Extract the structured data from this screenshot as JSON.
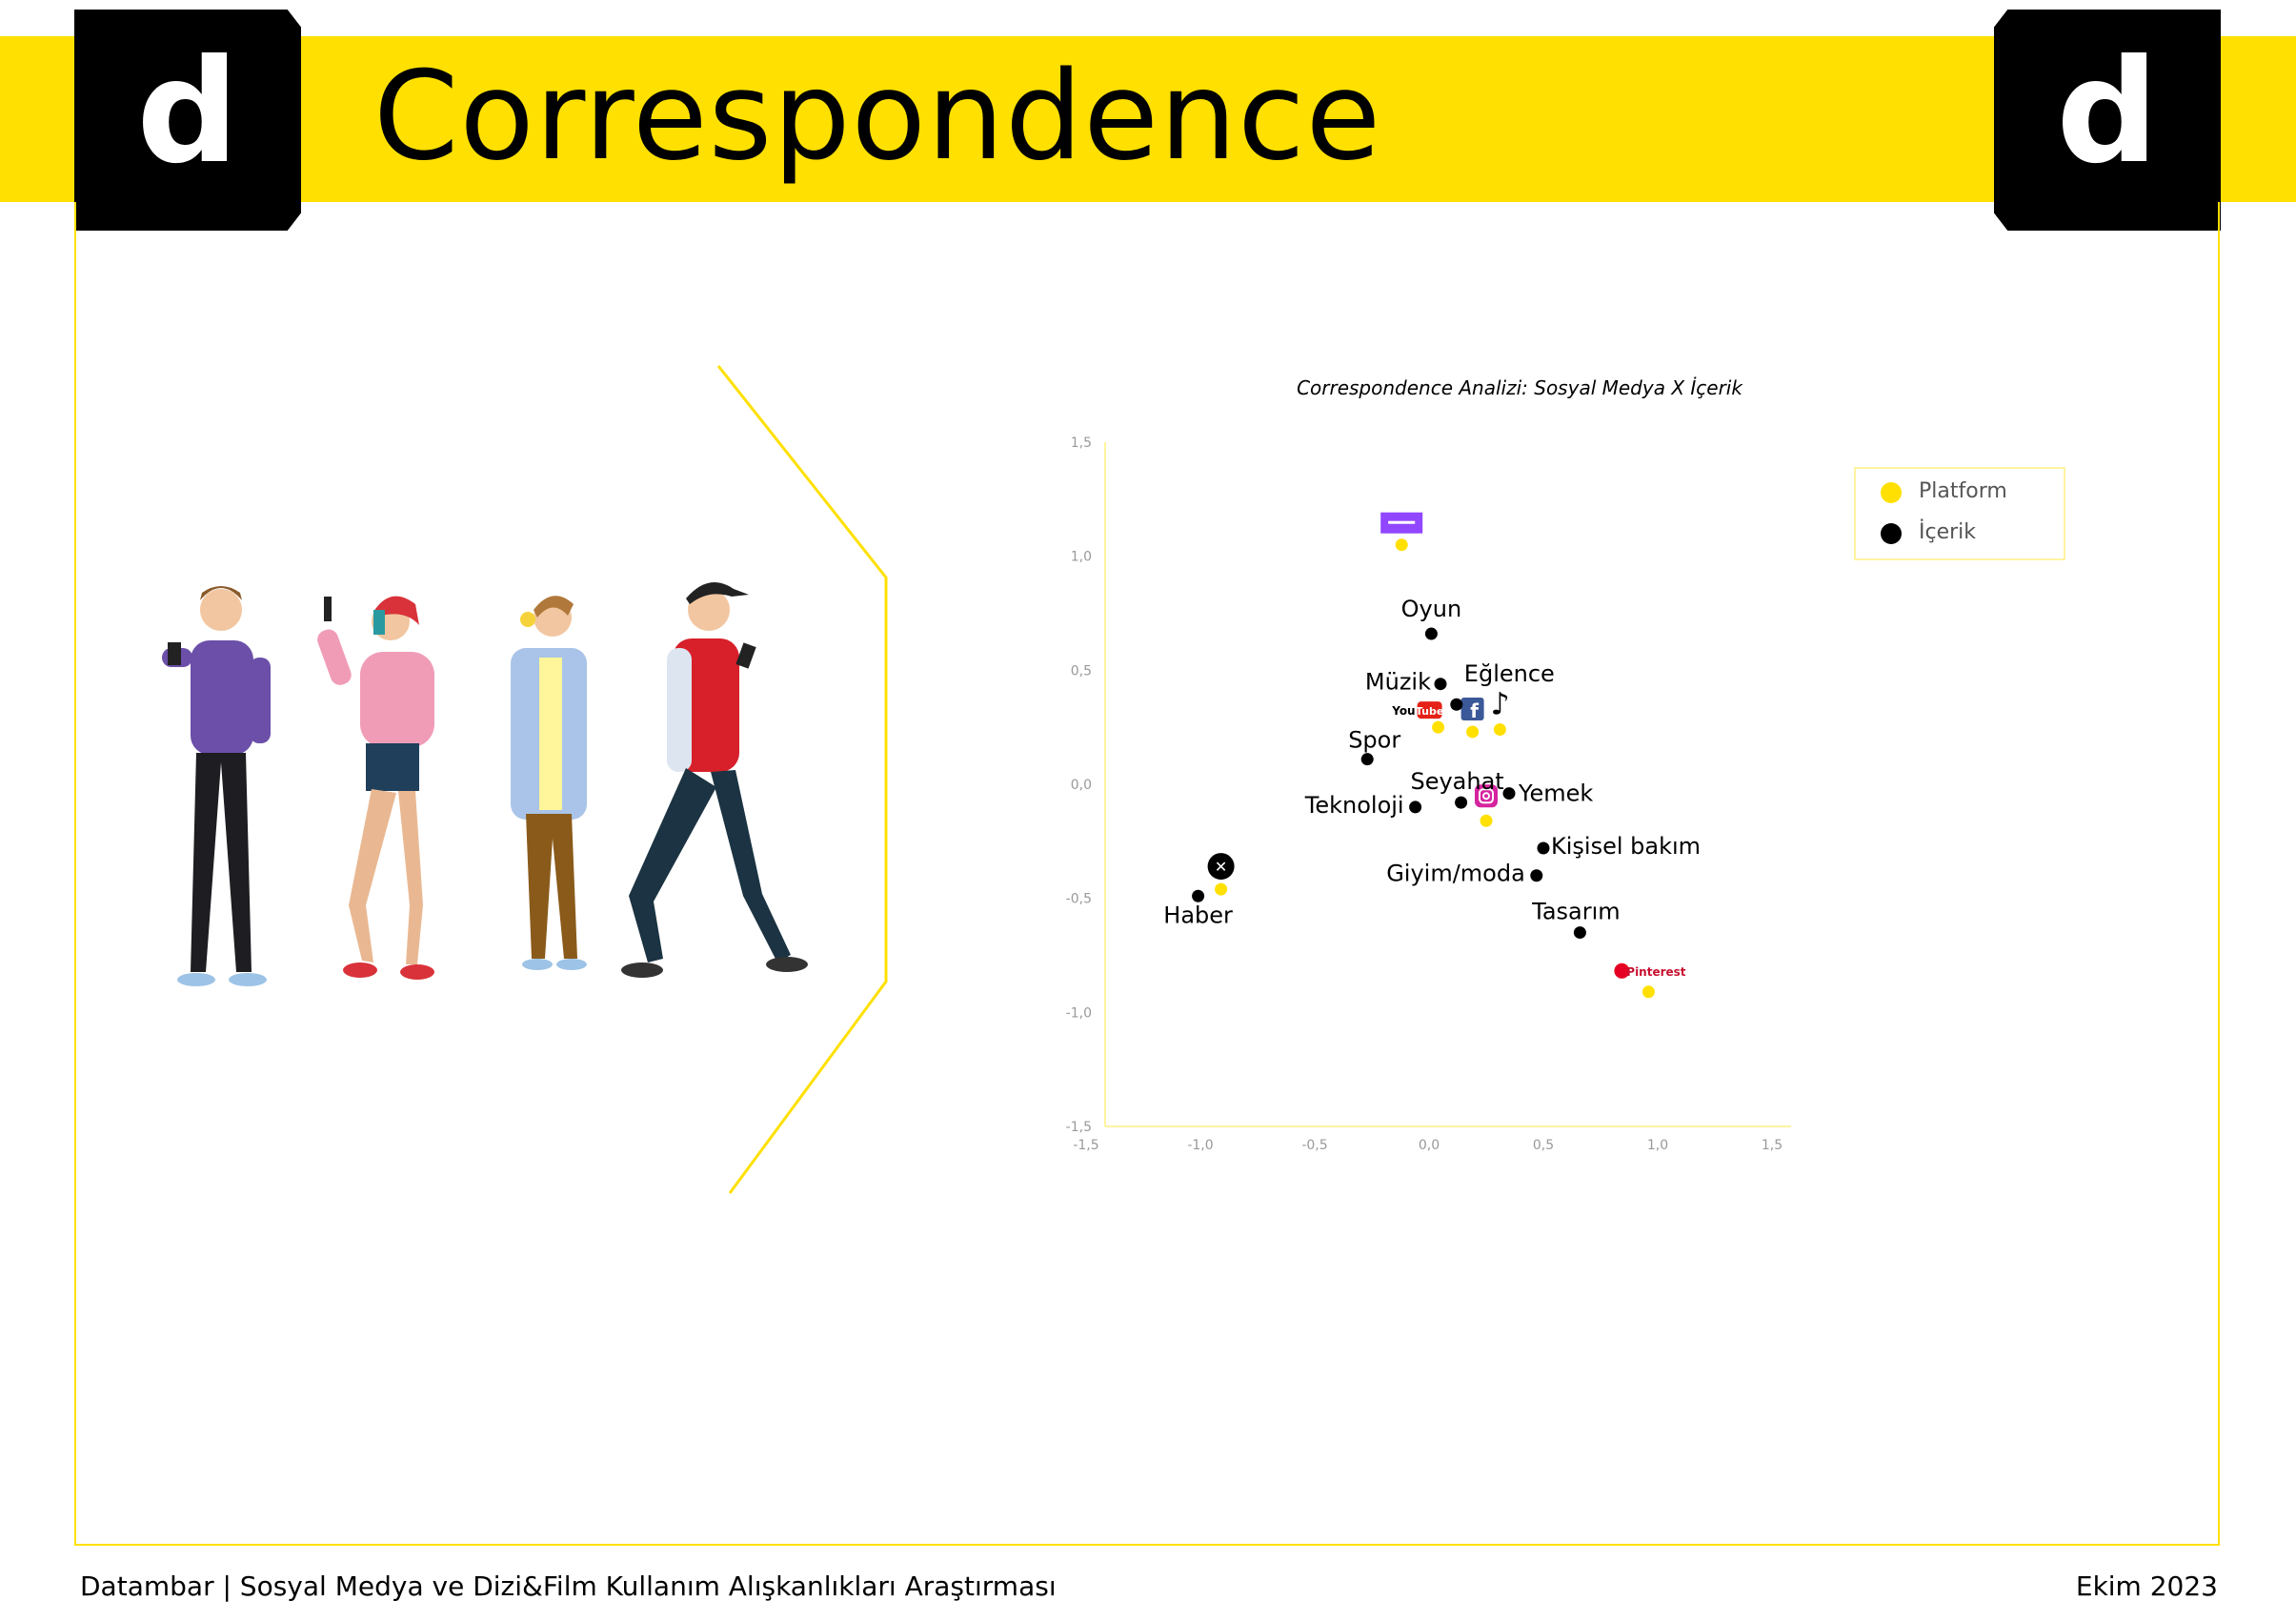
{
  "header": {
    "logo_letter": "d",
    "title": "Correspondence"
  },
  "footer": {
    "left": "Datambar | Sosyal Medya ve Dizi&Film Kullanım Alışkanlıkları Araştırması",
    "right": "Ekim 2023"
  },
  "colors": {
    "brand_yellow": "#FFE000",
    "platform": "#FFE000",
    "content": "#000000"
  },
  "chart_data": {
    "type": "scatter",
    "title": "Correspondence Analizi: Sosyal Medya X İçerik",
    "xlim": [
      -1.5,
      1.5
    ],
    "ylim": [
      -1.5,
      1.5
    ],
    "x_ticks": [
      "-1,5",
      "-1,0",
      "-0,5",
      "0,0",
      "0,5",
      "1,0",
      "1,5"
    ],
    "y_ticks": [
      "1,5",
      "1,0",
      "0,5",
      "0,0",
      "-0,5",
      "-1,0",
      "-1,5"
    ],
    "legend": {
      "placement": "top-right",
      "items": [
        "Platform",
        "İçerik"
      ]
    },
    "series": [
      {
        "name": "Platform",
        "color": "#FFE000",
        "points": [
          {
            "label": "Twitch",
            "icon": "twitch-icon",
            "x": -0.12,
            "y": 1.05
          },
          {
            "label": "YouTube",
            "icon": "youtube-icon",
            "x": 0.04,
            "y": 0.25
          },
          {
            "label": "Facebook",
            "icon": "facebook-icon",
            "x": 0.19,
            "y": 0.23
          },
          {
            "label": "TikTok",
            "icon": "tiktok-icon",
            "x": 0.31,
            "y": 0.24
          },
          {
            "label": "Instagram",
            "icon": "instagram-icon",
            "x": 0.25,
            "y": -0.16
          },
          {
            "label": "X",
            "icon": "x-icon",
            "x": -0.91,
            "y": -0.46
          },
          {
            "label": "Pinterest",
            "icon": "pinterest-icon",
            "x": 0.96,
            "y": -0.91
          }
        ]
      },
      {
        "name": "İçerik",
        "color": "#000000",
        "points": [
          {
            "label": "Oyun",
            "x": 0.01,
            "y": 0.66
          },
          {
            "label": "Müzik",
            "x": 0.05,
            "y": 0.44
          },
          {
            "label": "Eğlence",
            "x": 0.12,
            "y": 0.35
          },
          {
            "label": "Spor",
            "x": -0.27,
            "y": 0.11
          },
          {
            "label": "Seyahat",
            "x": 0.14,
            "y": -0.08
          },
          {
            "label": "Teknoloji",
            "x": -0.06,
            "y": -0.1
          },
          {
            "label": "Yemek",
            "x": 0.35,
            "y": -0.04
          },
          {
            "label": "Kişisel bakım",
            "x": 0.5,
            "y": -0.28
          },
          {
            "label": "Giyim/moda",
            "x": 0.47,
            "y": -0.4
          },
          {
            "label": "Haber",
            "x": -1.01,
            "y": -0.49
          },
          {
            "label": "Tasarım",
            "x": 0.66,
            "y": -0.65
          }
        ]
      }
    ]
  }
}
